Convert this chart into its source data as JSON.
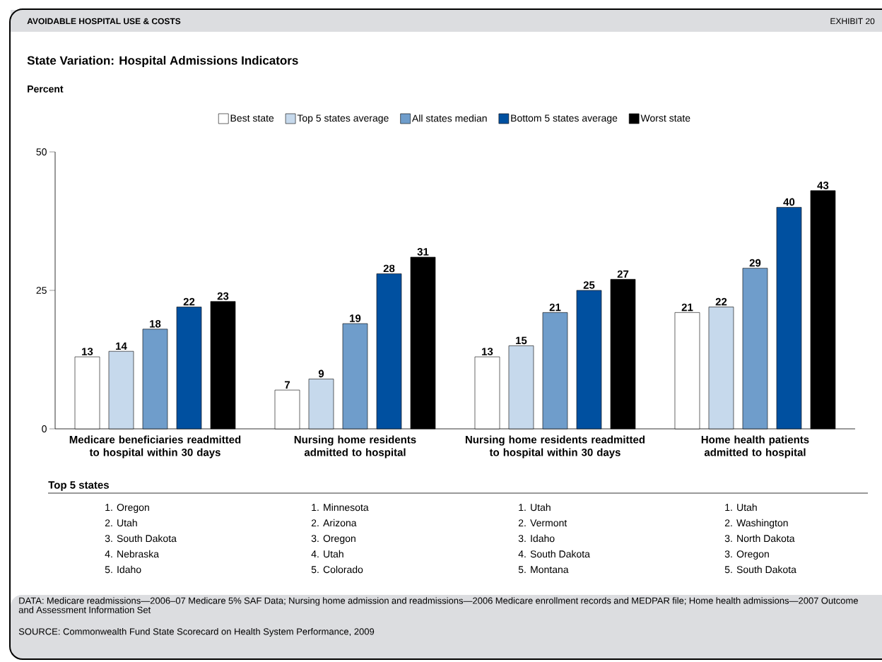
{
  "chart_data": {
    "type": "bar",
    "title": "State Variation: Hospital Admissions Indicators",
    "categories": [
      "Medicare beneficiaries readmitted to hospital within 30 days",
      "Nursing home residents admitted to hospital",
      "Nursing home residents readmitted to hospital within 30 days",
      "Home health patients admitted to hospital"
    ],
    "series": [
      {
        "name": "Best state",
        "color": "#ffffff",
        "values": [
          13,
          7,
          13,
          21
        ]
      },
      {
        "name": "Top 5 states average",
        "color": "#c6d9ec",
        "values": [
          14,
          9,
          15,
          22
        ]
      },
      {
        "name": "All states median",
        "color": "#6f9dcb",
        "values": [
          18,
          19,
          21,
          29
        ]
      },
      {
        "name": "Bottom 5 states average",
        "color": "#0050a0",
        "values": [
          22,
          28,
          25,
          40
        ]
      },
      {
        "name": "Worst state",
        "color": "#000000",
        "values": [
          23,
          31,
          27,
          43
        ]
      }
    ],
    "ylim": [
      0,
      50
    ],
    "yticks": [
      0,
      25,
      50
    ],
    "data_labels": true,
    "legend": "top",
    "annotations": [
      "AVOIDABLE HOSPITAL USE & COSTS",
      "EXHIBIT 20",
      "Top 5 states",
      "1. Oregon",
      "2. Utah",
      "3. South Dakota",
      "4. Nebraska",
      "5. Idaho",
      "1. Minnesota",
      "2. Arizona",
      "3. Oregon",
      "4. Utah",
      "5. Colorado",
      "1. Utah",
      "2. Vermont",
      "3. Idaho",
      "4. South Dakota",
      "5. Montana",
      "1. Utah",
      "2. Washington",
      "3. North Dakota",
      "3. Oregon",
      "5. South Dakota",
      "DATA: Medicare readmissions—2006–07 Medicare 5% SAF Data; Nursing home admission and readmissions—2006 Medicare enrollment records and MEDPAR file; Home health admissions—2007 Outcome and Assessment Information Set",
      "SOURCE: Commonwealth Fund State Scorecard on Health System Performance, 2009",
      "Percent"
    ]
  }
}
